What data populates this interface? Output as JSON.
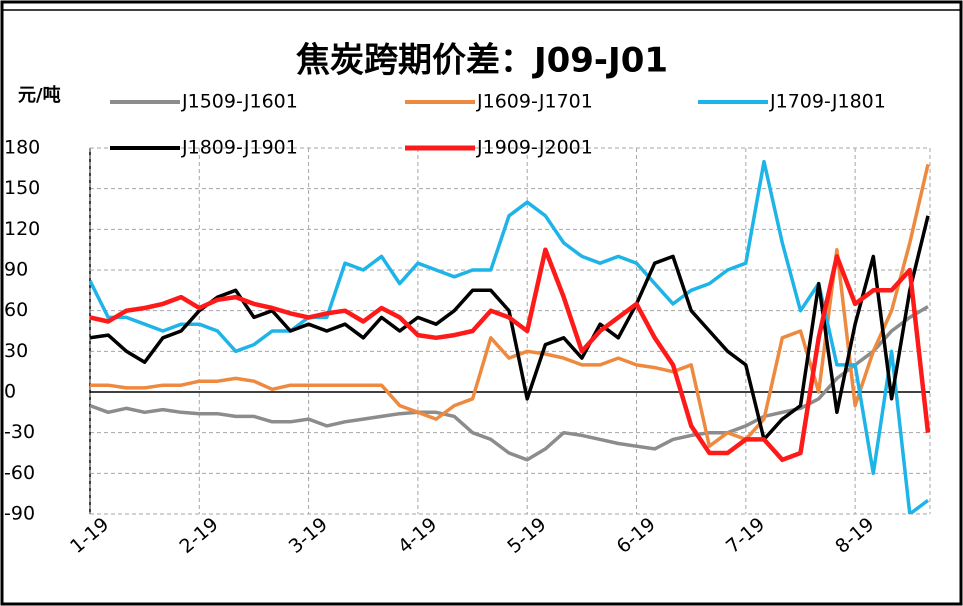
{
  "chart_data": {
    "type": "line",
    "title": "焦炭跨期价差：J09-J01",
    "y_label": "元/吨",
    "categories": [
      "1-19",
      null,
      null,
      null,
      null,
      null,
      "2-19",
      null,
      null,
      null,
      null,
      null,
      "3-19",
      null,
      null,
      null,
      null,
      null,
      "4-19",
      null,
      null,
      null,
      null,
      null,
      "5-19",
      null,
      null,
      null,
      null,
      null,
      "6-19",
      null,
      null,
      null,
      null,
      null,
      "7-19",
      null,
      null,
      null,
      null,
      null,
      "8-19",
      null,
      null,
      null,
      null
    ],
    "ylim": [
      -90,
      180
    ],
    "yticks": [
      -90,
      -60,
      -30,
      0,
      30,
      60,
      90,
      120,
      150,
      180
    ],
    "grid": true,
    "series": [
      {
        "name": "J1509-J1601",
        "color": "#8c8c8c",
        "values": [
          -10,
          -15,
          -12,
          -15,
          -13,
          -15,
          -16,
          -16,
          -18,
          -18,
          -22,
          -22,
          -20,
          -25,
          -22,
          -20,
          -18,
          -16,
          -15,
          -15,
          -18,
          -30,
          -35,
          -45,
          -50,
          -42,
          -30,
          -32,
          -35,
          -38,
          -40,
          -42,
          -35,
          -32,
          -30,
          -30,
          -25,
          -18,
          -15,
          -12,
          -5,
          10,
          20,
          30,
          45,
          55,
          63
        ]
      },
      {
        "name": "J1609-J1701",
        "color": "#ed8a3f",
        "values": [
          5,
          5,
          3,
          3,
          5,
          5,
          8,
          8,
          10,
          8,
          2,
          5,
          5,
          5,
          5,
          5,
          5,
          -10,
          -15,
          -20,
          -10,
          -5,
          40,
          25,
          30,
          28,
          25,
          20,
          20,
          25,
          20,
          18,
          15,
          20,
          -40,
          -30,
          -35,
          -20,
          40,
          45,
          0,
          105,
          -10,
          30,
          60,
          110,
          168
        ]
      },
      {
        "name": "J1709-J1801",
        "color": "#1fb4e8",
        "values": [
          82,
          55,
          55,
          50,
          45,
          50,
          50,
          45,
          30,
          35,
          45,
          45,
          55,
          55,
          95,
          90,
          100,
          80,
          95,
          90,
          85,
          90,
          90,
          130,
          140,
          130,
          110,
          100,
          95,
          100,
          95,
          80,
          65,
          75,
          80,
          90,
          95,
          170,
          110,
          60,
          80,
          20,
          20,
          -60,
          30,
          -90,
          -80
        ]
      },
      {
        "name": "J1809-J1901",
        "color": "#000000",
        "values": [
          40,
          42,
          30,
          22,
          40,
          45,
          60,
          70,
          75,
          55,
          60,
          45,
          50,
          45,
          50,
          40,
          55,
          45,
          55,
          50,
          60,
          75,
          75,
          60,
          -5,
          35,
          40,
          25,
          50,
          40,
          65,
          95,
          100,
          60,
          45,
          30,
          20,
          -35,
          -20,
          -10,
          80,
          -15,
          50,
          100,
          -5,
          75,
          130
        ]
      },
      {
        "name": "J1909-J2001",
        "color": "#ff1a1a",
        "values": [
          55,
          52,
          60,
          62,
          65,
          70,
          62,
          68,
          70,
          65,
          62,
          58,
          55,
          58,
          60,
          52,
          62,
          55,
          42,
          40,
          42,
          45,
          60,
          55,
          45,
          105,
          70,
          30,
          45,
          55,
          65,
          40,
          20,
          -25,
          -45,
          -45,
          -35,
          -35,
          -50,
          -45,
          40,
          100,
          65,
          75,
          75,
          90,
          -30
        ]
      }
    ]
  }
}
